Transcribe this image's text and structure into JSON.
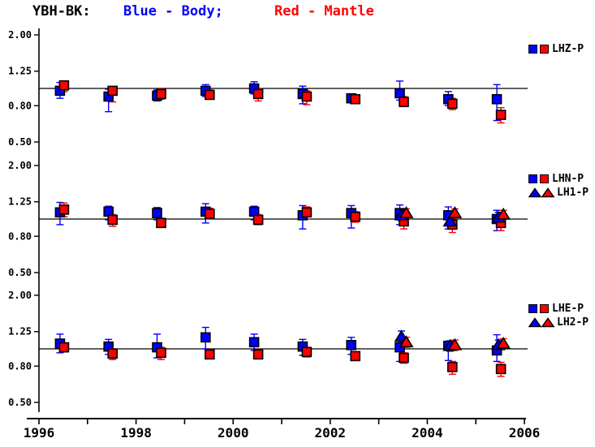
{
  "title": {
    "station": "YBH-BK:",
    "blue_label": "Blue - Body;",
    "red_label": "Red - Mantle"
  },
  "colors": {
    "body": "#0000ff",
    "mantle": "#ff0000",
    "axis": "#000000",
    "background": "#ffffff"
  },
  "chart_data": {
    "type": "scatter",
    "title": "YBH-BK: Blue - Body; Red - Mantle",
    "x_axis": {
      "range": [
        1995.75,
        2006.1
      ],
      "tick_years": [
        1996,
        1997,
        1998,
        1999,
        2000,
        2001,
        2002,
        2003,
        2004,
        2005,
        2006
      ],
      "labeled_years": [
        1996,
        1998,
        2000,
        2002,
        2004,
        2006
      ],
      "tick_labels": [
        "1996",
        "1998",
        "2000",
        "2002",
        "2004",
        "2006"
      ]
    },
    "y_axis": {
      "scale": "log",
      "tick_values": [
        2.0,
        1.25,
        0.8,
        0.5
      ],
      "tick_labels": [
        "2.00",
        "1.25",
        "0.80",
        "0.50"
      ],
      "reference_line": 1.0
    },
    "panels": [
      {
        "label": "LHZ",
        "legend_rows": [
          {
            "marker": "square",
            "label": "LHZ-P"
          }
        ],
        "series": [
          {
            "name": "body-square",
            "role": "body",
            "marker": "square",
            "x": [
              1996.5,
              1997.5,
              1998.5,
              1999.5,
              2000.5,
              2001.5,
              2002.5,
              2003.5,
              2004.5,
              2005.5
            ],
            "y": [
              0.97,
              0.9,
              0.91,
              0.97,
              1.0,
              0.93,
              0.88,
              0.94,
              0.87,
              0.87
            ],
            "lo": [
              0.88,
              0.74,
              0.85,
              0.9,
              0.93,
              0.82,
              0.84,
              0.86,
              0.8,
              0.66
            ],
            "hi": [
              1.08,
              0.99,
              0.98,
              1.05,
              1.09,
              1.03,
              0.93,
              1.1,
              0.96,
              1.05
            ]
          },
          {
            "name": "mantle-square",
            "role": "mantle",
            "marker": "square",
            "x": [
              1996.5,
              1997.5,
              1998.5,
              1999.5,
              2000.5,
              2001.5,
              2002.5,
              2003.5,
              2004.5,
              2005.5
            ],
            "y": [
              1.04,
              0.97,
              0.93,
              0.92,
              0.93,
              0.9,
              0.87,
              0.84,
              0.82,
              0.71
            ],
            "lo": [
              0.96,
              0.84,
              0.87,
              0.87,
              0.85,
              0.81,
              0.83,
              0.79,
              0.76,
              0.64
            ],
            "hi": [
              1.09,
              1.02,
              0.99,
              0.98,
              1.0,
              0.97,
              0.92,
              0.9,
              0.88,
              0.78
            ]
          }
        ]
      },
      {
        "label": "LHN",
        "legend_rows": [
          {
            "marker": "square",
            "label": "LHN-P"
          },
          {
            "marker": "triangle",
            "label": "LH1-P"
          }
        ],
        "series": [
          {
            "name": "body-square",
            "role": "body",
            "marker": "square",
            "x": [
              1996.5,
              1997.5,
              1998.5,
              1999.5,
              2000.5,
              2001.5,
              2002.5,
              2003.5,
              2004.5,
              2005.5
            ],
            "y": [
              1.09,
              1.1,
              1.08,
              1.1,
              1.1,
              1.05,
              1.08,
              1.08,
              1.05,
              1.0
            ],
            "lo": [
              0.93,
              0.99,
              0.99,
              0.95,
              0.99,
              0.88,
              0.89,
              0.93,
              0.88,
              0.86
            ],
            "hi": [
              1.24,
              1.18,
              1.16,
              1.22,
              1.18,
              1.19,
              1.19,
              1.2,
              1.17,
              1.12
            ]
          },
          {
            "name": "mantle-square",
            "role": "mantle",
            "marker": "square",
            "x": [
              1996.5,
              1997.5,
              1998.5,
              1999.5,
              2000.5,
              2001.5,
              2002.5,
              2003.5,
              2004.5,
              2005.5
            ],
            "y": [
              1.13,
              0.99,
              0.95,
              1.07,
              0.99,
              1.09,
              1.03,
              0.97,
              0.93,
              0.95
            ],
            "lo": [
              1.03,
              0.91,
              0.9,
              1.0,
              0.93,
              1.0,
              0.96,
              0.88,
              0.84,
              0.86
            ],
            "hi": [
              1.23,
              1.06,
              1.01,
              1.15,
              1.06,
              1.17,
              1.1,
              1.05,
              1.01,
              1.04
            ]
          },
          {
            "name": "body-triangle",
            "role": "body",
            "marker": "triangle",
            "x": [
              2003.5,
              2004.5,
              2005.5
            ],
            "y": [
              1.05,
              0.97,
              1.02
            ],
            "lo": [
              0.98,
              0.91,
              0.95
            ],
            "hi": [
              1.12,
              1.03,
              1.09
            ]
          },
          {
            "name": "mantle-triangle",
            "role": "mantle",
            "marker": "triangle",
            "x": [
              2003.5,
              2004.5,
              2005.5
            ],
            "y": [
              1.08,
              1.08,
              1.06
            ],
            "lo": [
              1.02,
              1.02,
              1.0
            ],
            "hi": [
              1.14,
              1.14,
              1.12
            ]
          }
        ]
      },
      {
        "label": "LHE",
        "legend_rows": [
          {
            "marker": "square",
            "label": "LHE-P"
          },
          {
            "marker": "triangle",
            "label": "LH2-P"
          }
        ],
        "series": [
          {
            "name": "body-square",
            "role": "body",
            "marker": "square",
            "x": [
              1996.5,
              1997.5,
              1998.5,
              1999.5,
              2000.5,
              2001.5,
              2002.5,
              2003.5,
              2004.5,
              2005.5
            ],
            "y": [
              1.07,
              1.03,
              1.02,
              1.16,
              1.09,
              1.03,
              1.05,
              1.02,
              1.04,
              0.98
            ],
            "lo": [
              0.95,
              0.93,
              0.89,
              1.0,
              0.98,
              0.92,
              0.93,
              0.85,
              0.86,
              0.85
            ],
            "hi": [
              1.21,
              1.13,
              1.21,
              1.32,
              1.21,
              1.13,
              1.16,
              1.12,
              1.1,
              1.2
            ]
          },
          {
            "name": "mantle-square",
            "role": "mantle",
            "marker": "square",
            "x": [
              1996.5,
              1997.5,
              1998.5,
              1999.5,
              2000.5,
              2001.5,
              2002.5,
              2003.5,
              2004.5,
              2005.5
            ],
            "y": [
              1.02,
              0.94,
              0.95,
              0.93,
              0.93,
              0.96,
              0.91,
              0.89,
              0.79,
              0.77
            ],
            "lo": [
              0.96,
              0.87,
              0.87,
              0.88,
              0.88,
              0.9,
              0.87,
              0.83,
              0.72,
              0.7
            ],
            "hi": [
              1.08,
              1.0,
              1.02,
              0.99,
              0.99,
              1.02,
              0.96,
              0.95,
              0.85,
              0.84
            ]
          },
          {
            "name": "body-triangle",
            "role": "body",
            "marker": "triangle",
            "x": [
              2003.5,
              2004.5,
              2005.5
            ],
            "y": [
              1.17,
              1.04,
              1.05
            ],
            "lo": [
              1.08,
              0.97,
              0.98
            ],
            "hi": [
              1.26,
              1.11,
              1.12
            ]
          },
          {
            "name": "mantle-triangle",
            "role": "mantle",
            "marker": "triangle",
            "x": [
              2003.5,
              2004.5,
              2005.5
            ],
            "y": [
              1.09,
              1.05,
              1.07
            ],
            "lo": [
              1.02,
              0.98,
              1.0
            ],
            "hi": [
              1.16,
              1.12,
              1.14
            ]
          }
        ]
      }
    ]
  }
}
